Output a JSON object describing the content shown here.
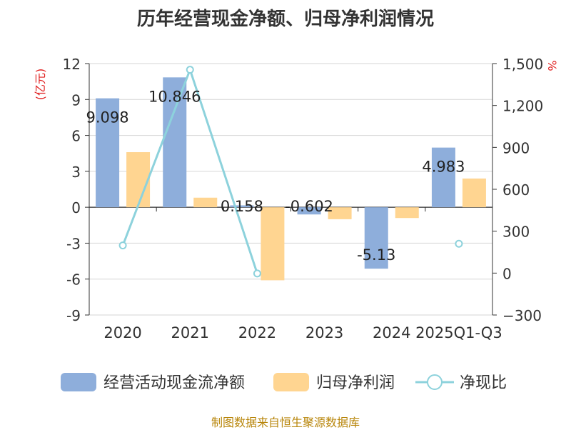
{
  "chart_data": {
    "type": "bar+line",
    "title": "历年经营现金净额、归母净利润情况",
    "categories": [
      "2020",
      "2021",
      "2022",
      "2023",
      "2024",
      "2025Q1-Q3"
    ],
    "series": [
      {
        "name": "经营活动现金流净额",
        "type": "bar",
        "axis": "left",
        "color": "#8eaedb",
        "values": [
          9.098,
          10.846,
          0.158,
          -0.602,
          -5.13,
          4.983
        ],
        "labels": [
          "9.098",
          "10.846",
          "0.158",
          "-0.602",
          "-5.13",
          "4.983"
        ]
      },
      {
        "name": "归母净利润",
        "type": "bar",
        "axis": "left",
        "color": "#ffd591",
        "values": [
          4.6,
          0.8,
          -6.1,
          -1.0,
          -0.9,
          2.4
        ]
      },
      {
        "name": "净现比",
        "type": "line",
        "axis": "right",
        "color": "#8dd2dc",
        "values": [
          198,
          1456,
          -3,
          null,
          null,
          210
        ]
      }
    ],
    "left_axis": {
      "label": "(亿元)",
      "ylim": [
        -9,
        12
      ],
      "ticks": [
        12,
        9,
        6,
        3,
        0,
        -3,
        -6,
        -9
      ],
      "tick_labels": [
        "12",
        "9",
        "6",
        "3",
        "0",
        "-3",
        "-6",
        "-9"
      ]
    },
    "right_axis": {
      "label": "%",
      "ylim": [
        -300,
        1500
      ],
      "ticks": [
        1500,
        1200,
        900,
        600,
        300,
        0,
        -300
      ],
      "tick_labels": [
        "1,500",
        "1,200",
        "900",
        "600",
        "300",
        "0",
        "−300"
      ]
    },
    "legend": [
      "经营活动现金流净额",
      "归母净利润",
      "净现比"
    ],
    "legend_position": "bottom",
    "grid": true
  },
  "source": "制图数据来自恒生聚源数据库"
}
